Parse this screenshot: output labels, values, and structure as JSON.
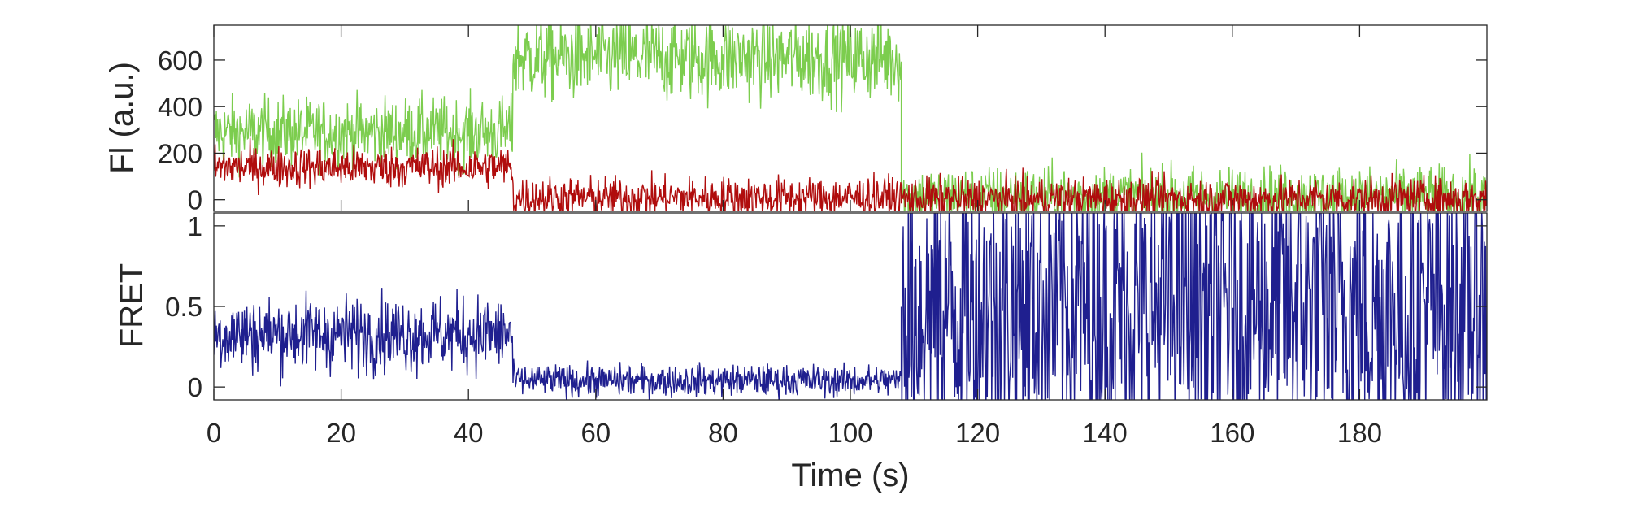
{
  "chart_data": [
    {
      "type": "line",
      "panel": "top",
      "ylabel": "Fl (a.u.)",
      "xlim": [
        0,
        200
      ],
      "ylim": [
        -50,
        750
      ],
      "yticks": [
        0,
        200,
        400,
        600
      ],
      "ytick_labels": [
        "0",
        "200",
        "400",
        "600"
      ],
      "grid": false,
      "segments": {
        "green": [
          {
            "x0": 0,
            "x1": 47,
            "mean": 290,
            "noise": 75
          },
          {
            "x0": 47,
            "x1": 108,
            "mean": 610,
            "noise": 95
          },
          {
            "x0": 108,
            "x1": 200,
            "mean": 15,
            "noise": 65
          }
        ],
        "red": [
          {
            "x0": 0,
            "x1": 47,
            "mean": 140,
            "noise": 45
          },
          {
            "x0": 47,
            "x1": 108,
            "mean": 10,
            "noise": 45
          },
          {
            "x0": 108,
            "x1": 200,
            "mean": 5,
            "noise": 45
          }
        ]
      },
      "colors": {
        "green": "#7ccd4e",
        "red": "#b00d0d"
      }
    },
    {
      "type": "line",
      "panel": "bottom",
      "xlabel": "Time (s)",
      "ylabel": "FRET",
      "xlim": [
        0,
        200
      ],
      "ylim": [
        -0.08,
        1.08
      ],
      "yticks": [
        0,
        0.5,
        1
      ],
      "ytick_labels": [
        "0",
        "0.5",
        "1"
      ],
      "xticks": [
        0,
        20,
        40,
        60,
        80,
        100,
        120,
        140,
        160,
        180
      ],
      "xtick_labels": [
        "0",
        "20",
        "40",
        "60",
        "80",
        "100",
        "120",
        "140",
        "160",
        "180"
      ],
      "grid": false,
      "segments": {
        "fret": [
          {
            "x0": 0,
            "x1": 47,
            "mean": 0.33,
            "noise": 0.12
          },
          {
            "x0": 47,
            "x1": 108,
            "mean": 0.04,
            "noise": 0.05
          },
          {
            "x0": 108,
            "x1": 200,
            "mode": "random",
            "lo": -0.3,
            "hi": 1.3
          }
        ]
      },
      "colors": {
        "fret": "#1f1f8f"
      }
    }
  ]
}
